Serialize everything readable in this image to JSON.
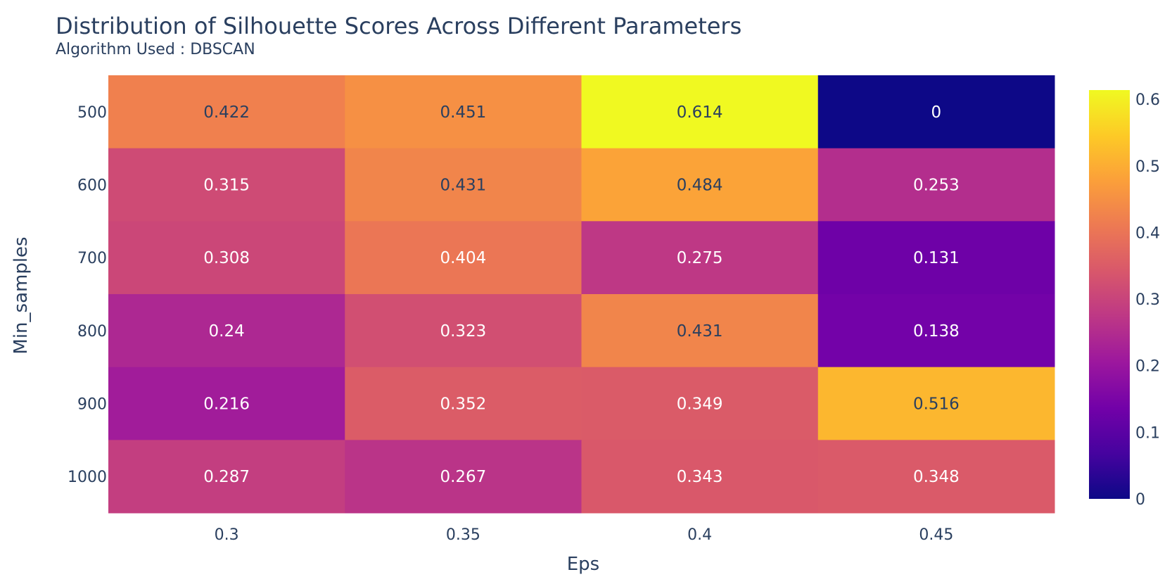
{
  "chart_data": {
    "type": "heatmap",
    "title": "Distribution of Silhouette Scores Across Different Parameters",
    "subtitle": "Algorithm Used : DBSCAN",
    "xlabel": "Eps",
    "ylabel": "Min_samples",
    "x": [
      "0.3",
      "0.35",
      "0.4",
      "0.45"
    ],
    "y": [
      "500",
      "600",
      "700",
      "800",
      "900",
      "1000"
    ],
    "z": [
      [
        0.422,
        0.451,
        0.614,
        0
      ],
      [
        0.315,
        0.431,
        0.484,
        0.253
      ],
      [
        0.308,
        0.404,
        0.275,
        0.131
      ],
      [
        0.24,
        0.323,
        0.431,
        0.138
      ],
      [
        0.216,
        0.352,
        0.349,
        0.516
      ],
      [
        0.287,
        0.267,
        0.343,
        0.348
      ]
    ],
    "colorscale": "Plasma",
    "colorbar": {
      "range": [
        0,
        0.614
      ],
      "ticks": [
        "0",
        "0.1",
        "0.2",
        "0.3",
        "0.4",
        "0.5",
        "0.6"
      ]
    },
    "colors": [
      "#0d0887",
      "#46039f",
      "#7201a8",
      "#9c179e",
      "#bd3786",
      "#d8576b",
      "#ed7953",
      "#fb9f3a",
      "#fdca26",
      "#f0f921"
    ]
  }
}
